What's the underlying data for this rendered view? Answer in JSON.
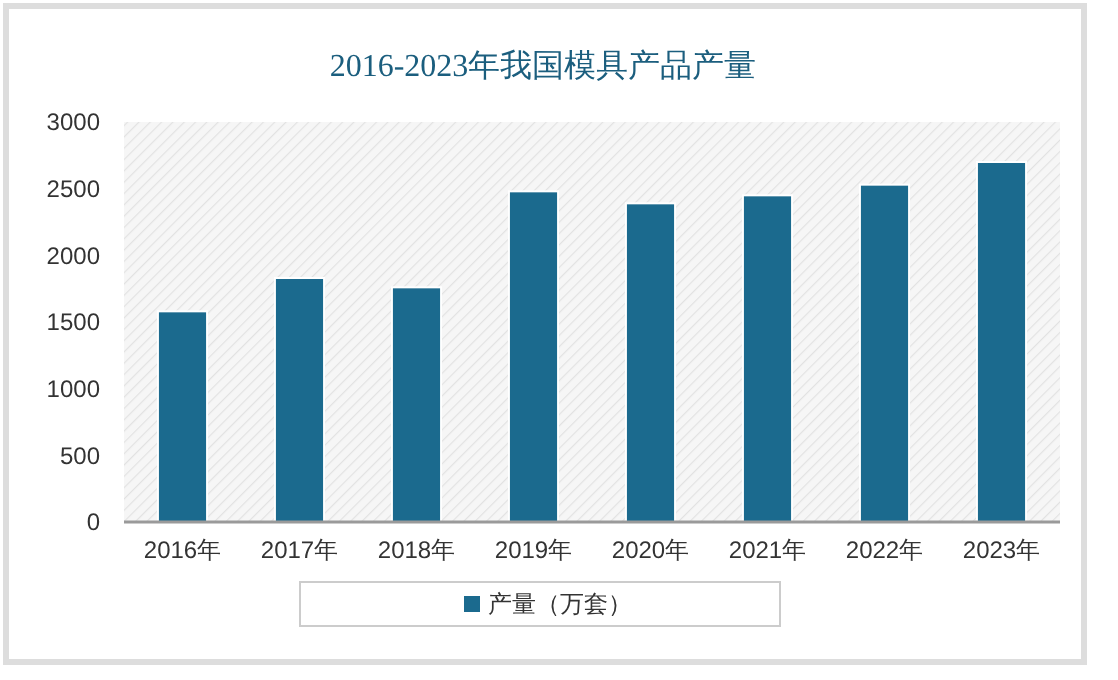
{
  "chart_data": {
    "type": "bar",
    "title": "2016-2023年我国模具产品产量",
    "categories": [
      "2016年",
      "2017年",
      "2018年",
      "2019年",
      "2020年",
      "2021年",
      "2022年",
      "2023年"
    ],
    "series": [
      {
        "name": "产量（万套）",
        "color": "#1b6a8e",
        "values": [
          1580,
          1830,
          1760,
          2480,
          2390,
          2450,
          2530,
          2700
        ]
      }
    ],
    "ylim": [
      0,
      3000
    ],
    "yticks": [
      0,
      500,
      1000,
      1500,
      2000,
      2500,
      3000
    ],
    "grid": false,
    "legend": "bottom"
  }
}
